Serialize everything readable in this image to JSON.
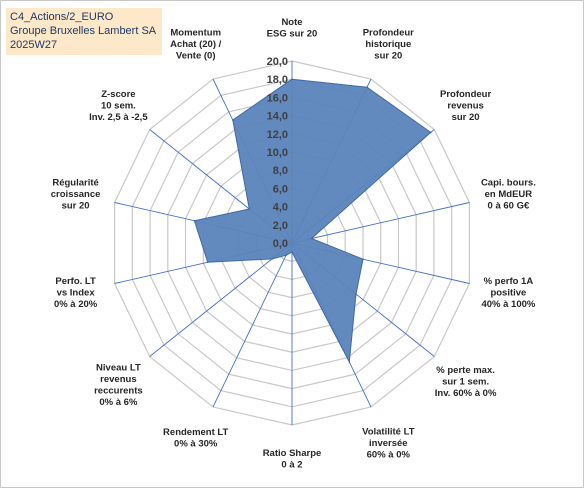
{
  "title_lines": [
    "C4_Actions/2_EURO",
    "Groupe Bruxelles Lambert SA",
    "2025W27"
  ],
  "colors": {
    "series_fill": "#5b84bb",
    "series_stroke": "#3f6aa5",
    "grid": "#c8c8c8",
    "spoke": "#4472c4",
    "title_background": "#fde9c9",
    "title_text": "#1f3864"
  },
  "chart_data": {
    "type": "radar",
    "rmin": 0,
    "rmax": 20,
    "tick_step": 2,
    "ticks": [
      "0,0",
      "2,0",
      "4,0",
      "6,0",
      "8,0",
      "10,0",
      "12,0",
      "14,0",
      "16,0",
      "18,0",
      "20,0"
    ],
    "grid": true,
    "categories": [
      {
        "label": [
          "Note",
          "ESG sur 20"
        ],
        "value": 18.0
      },
      {
        "label": [
          "Profondeur",
          "historique",
          "sur 20"
        ],
        "value": 19.0
      },
      {
        "label": [
          "Profondeur",
          "revenus",
          "sur 20"
        ],
        "value": 19.5
      },
      {
        "label": [
          "Capi. bours.",
          "en MdEUR",
          "0 à 60 G€"
        ],
        "value": 2.2
      },
      {
        "label": [
          "% perfo 1A",
          "positive",
          "40% à 100%"
        ],
        "value": 8.0
      },
      {
        "label": [
          "% perte max.",
          "sur 1 sem.",
          "Inv. 60% à 0%"
        ],
        "value": 9.0
      },
      {
        "label": [
          "Volatilité LT",
          "inversée",
          "60% à 0%"
        ],
        "value": 14.5
      },
      {
        "label": [
          "Ratio Sharpe",
          "0 à 2"
        ],
        "value": 1.0
      },
      {
        "label": [
          "Rendement LT",
          "0% à 30%"
        ],
        "value": 1.5
      },
      {
        "label": [
          "Niveau LT",
          "revenus",
          "reccurents",
          "0% à 6%"
        ],
        "value": 2.8
      },
      {
        "label": [
          "Perfo. LT",
          "vs Index",
          "0% à 20%"
        ],
        "value": 9.5
      },
      {
        "label": [
          "Régularité",
          "croissance",
          "sur 20"
        ],
        "value": 11.0
      },
      {
        "label": [
          "Z-score",
          "10 sem.",
          "Inv. 2,5 à -2,5"
        ],
        "value": 6.0
      },
      {
        "label": [
          "Momentum",
          "Achat (20) /",
          "Vente (0)"
        ],
        "value": 15.0
      }
    ]
  }
}
